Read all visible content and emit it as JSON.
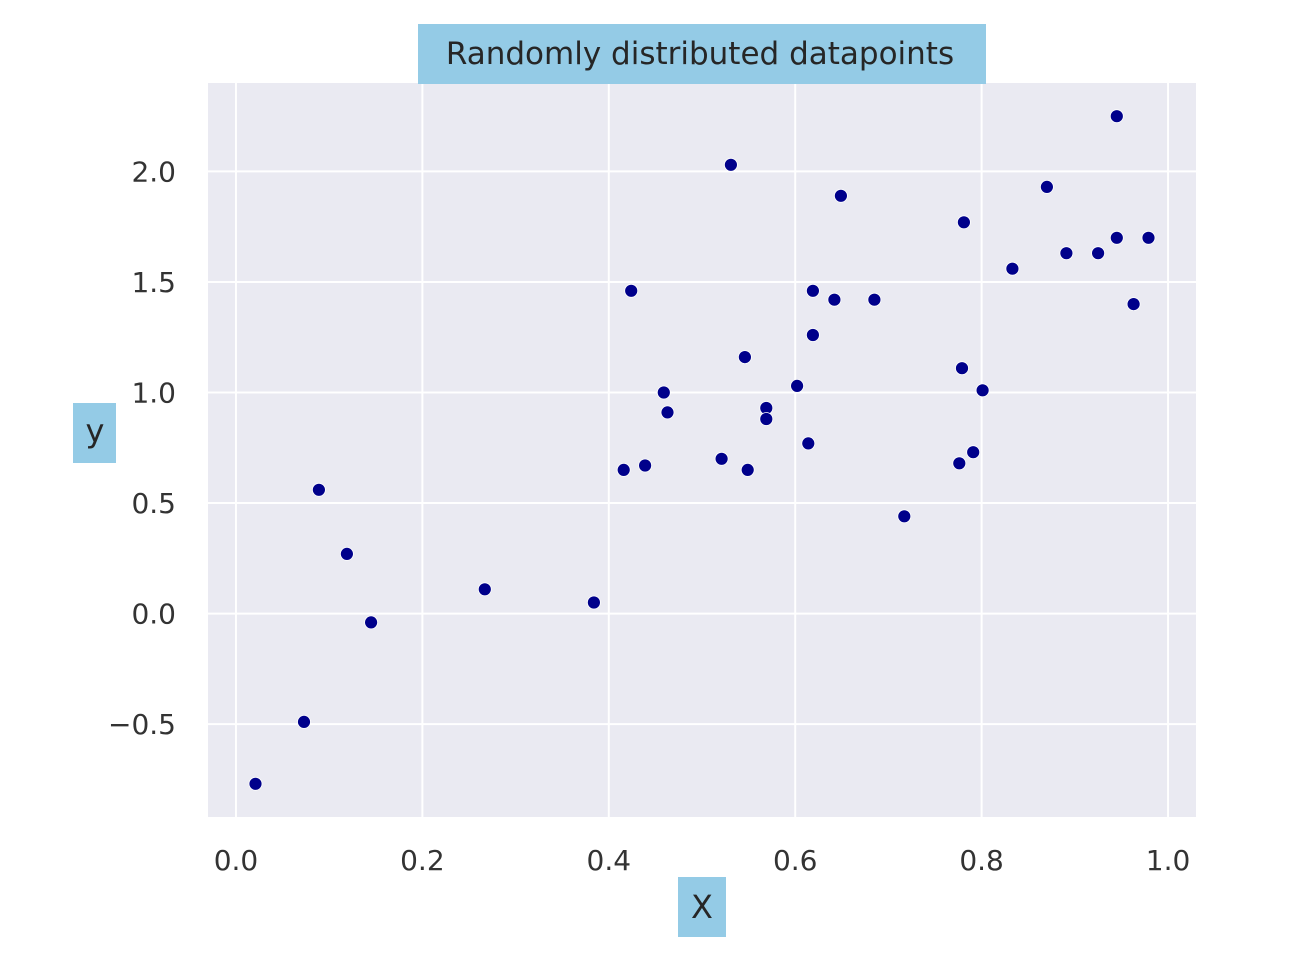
{
  "chart_data": {
    "type": "scatter",
    "title": "Randomly distributed datapoints",
    "xlabel": "X",
    "ylabel": "y",
    "xlim": [
      -0.03,
      1.03
    ],
    "ylim": [
      -0.92,
      2.4
    ],
    "xticks": [
      {
        "value": 0.0,
        "label": "0.0"
      },
      {
        "value": 0.2,
        "label": "0.2"
      },
      {
        "value": 0.4,
        "label": "0.4"
      },
      {
        "value": 0.6,
        "label": "0.6"
      },
      {
        "value": 0.8,
        "label": "0.8"
      },
      {
        "value": 1.0,
        "label": "1.0"
      }
    ],
    "yticks": [
      {
        "value": -0.5,
        "label": "−0.5"
      },
      {
        "value": 0.0,
        "label": "0.0"
      },
      {
        "value": 0.5,
        "label": "0.5"
      },
      {
        "value": 1.0,
        "label": "1.0"
      },
      {
        "value": 1.5,
        "label": "1.5"
      },
      {
        "value": 2.0,
        "label": "2.0"
      }
    ],
    "grid": true,
    "colors": {
      "background": "#eaeaf2",
      "grid": "#ffffff",
      "marker": "#00008b",
      "label_box": "#94cbe6"
    },
    "points": [
      {
        "x": 0.021,
        "y": -0.77
      },
      {
        "x": 0.073,
        "y": -0.49
      },
      {
        "x": 0.089,
        "y": 0.56
      },
      {
        "x": 0.119,
        "y": 0.27
      },
      {
        "x": 0.145,
        "y": -0.04
      },
      {
        "x": 0.267,
        "y": 0.11
      },
      {
        "x": 0.384,
        "y": 0.05
      },
      {
        "x": 0.416,
        "y": 0.65
      },
      {
        "x": 0.424,
        "y": 1.46
      },
      {
        "x": 0.439,
        "y": 0.67
      },
      {
        "x": 0.459,
        "y": 1.0
      },
      {
        "x": 0.463,
        "y": 0.91
      },
      {
        "x": 0.521,
        "y": 0.7
      },
      {
        "x": 0.531,
        "y": 2.03
      },
      {
        "x": 0.546,
        "y": 1.16
      },
      {
        "x": 0.549,
        "y": 0.65
      },
      {
        "x": 0.569,
        "y": 0.93
      },
      {
        "x": 0.569,
        "y": 0.88
      },
      {
        "x": 0.602,
        "y": 1.03
      },
      {
        "x": 0.614,
        "y": 0.77
      },
      {
        "x": 0.619,
        "y": 1.46
      },
      {
        "x": 0.619,
        "y": 1.26
      },
      {
        "x": 0.642,
        "y": 1.42
      },
      {
        "x": 0.649,
        "y": 1.89
      },
      {
        "x": 0.685,
        "y": 1.42
      },
      {
        "x": 0.717,
        "y": 0.44
      },
      {
        "x": 0.776,
        "y": 0.68
      },
      {
        "x": 0.779,
        "y": 1.11
      },
      {
        "x": 0.781,
        "y": 1.77
      },
      {
        "x": 0.791,
        "y": 0.73
      },
      {
        "x": 0.801,
        "y": 1.01
      },
      {
        "x": 0.833,
        "y": 1.56
      },
      {
        "x": 0.87,
        "y": 1.93
      },
      {
        "x": 0.891,
        "y": 1.63
      },
      {
        "x": 0.925,
        "y": 1.63
      },
      {
        "x": 0.945,
        "y": 2.25
      },
      {
        "x": 0.945,
        "y": 1.7
      },
      {
        "x": 0.963,
        "y": 1.4
      },
      {
        "x": 0.979,
        "y": 1.7
      }
    ]
  }
}
